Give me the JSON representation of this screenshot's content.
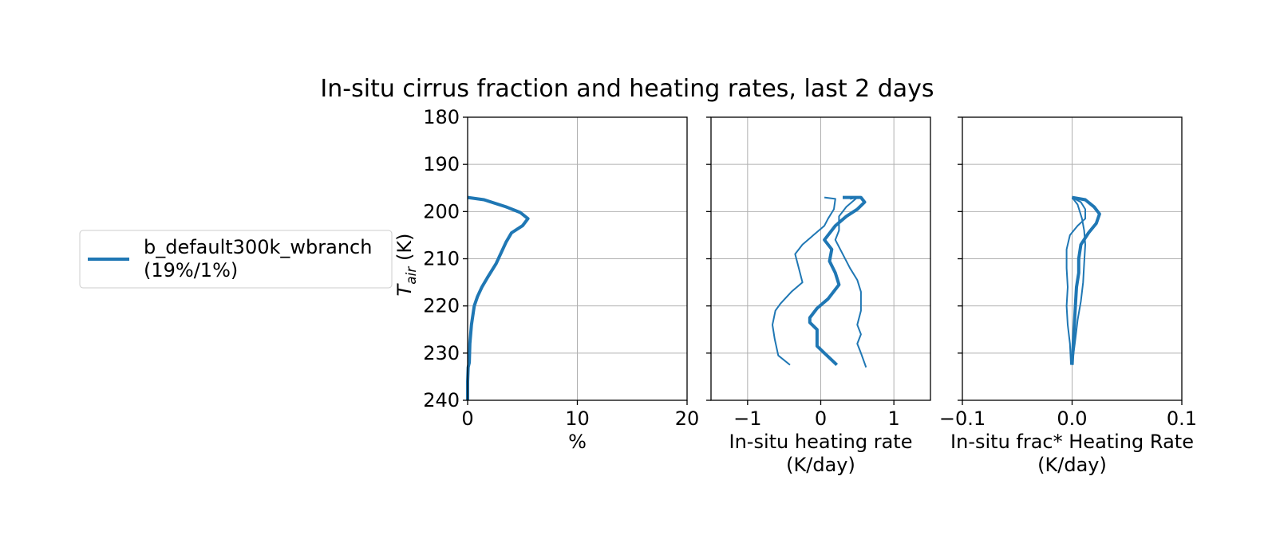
{
  "figure": {
    "suptitle": "In-situ cirrus fraction and heating rates, last 2 days",
    "legend": {
      "line1": "b_default300k_wbranch",
      "line2": "(19%/1%)",
      "color": "#1f77b4",
      "placement": "left of figure, outside axes"
    }
  },
  "chart_data": [
    {
      "type": "line",
      "xlabel": "%",
      "ylabel": "T_air (K)",
      "ylabel_main": "T",
      "ylabel_sub": "air",
      "ylabel_rest": " (K)",
      "xlim": [
        0,
        20
      ],
      "ylim": [
        240,
        180
      ],
      "xticks": [
        "0",
        "10",
        "20"
      ],
      "yticks": [
        "180",
        "190",
        "200",
        "210",
        "220",
        "230",
        "240"
      ],
      "grid": true,
      "series": [
        {
          "style": "thick",
          "color": "#1f77b4",
          "points": [
            [
              0,
              197
            ],
            [
              1.5,
              197.5
            ],
            [
              3.5,
              199
            ],
            [
              4.8,
              200.2
            ],
            [
              5.5,
              201.5
            ],
            [
              5.0,
              203
            ],
            [
              4.0,
              204.5
            ],
            [
              3.5,
              206.5
            ],
            [
              2.6,
              211
            ],
            [
              1.8,
              214
            ],
            [
              1.3,
              216
            ],
            [
              0.9,
              218
            ],
            [
              0.6,
              220
            ],
            [
              0.35,
              224
            ],
            [
              0.2,
              228
            ],
            [
              0.15,
              232
            ],
            [
              0.05,
              233
            ],
            [
              0,
              236
            ],
            [
              0,
              240
            ]
          ]
        }
      ]
    },
    {
      "type": "line",
      "xlabel": "In-situ heating rate",
      "xlabel2": "(K/day)",
      "xlim": [
        -1.5,
        1.5
      ],
      "ylim": [
        240,
        180
      ],
      "xticks": [
        "−1",
        "0",
        "1"
      ],
      "yticks": [],
      "grid": true,
      "series": [
        {
          "style": "thick",
          "color": "#1f77b4",
          "points": [
            [
              0.3,
              197
            ],
            [
              0.55,
              197
            ],
            [
              0.6,
              198
            ],
            [
              0.5,
              199.5
            ],
            [
              0.35,
              201
            ],
            [
              0.2,
              203
            ],
            [
              0.05,
              206
            ],
            [
              0.15,
              208
            ],
            [
              0.12,
              210.5
            ],
            [
              0.2,
              213
            ],
            [
              0.25,
              215.5
            ],
            [
              0.1,
              218.5
            ],
            [
              -0.05,
              220.5
            ],
            [
              -0.15,
              222.5
            ],
            [
              -0.15,
              223.5
            ],
            [
              -0.05,
              225
            ],
            [
              -0.05,
              227
            ],
            [
              -0.05,
              228.5
            ],
            [
              0.05,
              230
            ],
            [
              0.22,
              232.5
            ]
          ]
        },
        {
          "style": "thin",
          "color": "#1f77b4",
          "points": [
            [
              0.05,
              197
            ],
            [
              0.2,
              197.3
            ],
            [
              0.18,
              199.5
            ],
            [
              0.1,
              201.5
            ],
            [
              0.05,
              203
            ],
            [
              -0.1,
              205
            ],
            [
              -0.25,
              207
            ],
            [
              -0.35,
              209
            ],
            [
              -0.3,
              212
            ],
            [
              -0.25,
              215
            ],
            [
              -0.4,
              217
            ],
            [
              -0.55,
              219.5
            ],
            [
              -0.62,
              221
            ],
            [
              -0.66,
              224
            ],
            [
              -0.63,
              227
            ],
            [
              -0.58,
              230.5
            ],
            [
              -0.42,
              232.5
            ]
          ]
        },
        {
          "style": "thin",
          "color": "#1f77b4",
          "points": [
            [
              0.4,
              197.3
            ],
            [
              0.5,
              197
            ],
            [
              0.35,
              199
            ],
            [
              0.25,
              201
            ],
            [
              0.25,
              204
            ],
            [
              0.2,
              206
            ],
            [
              0.3,
              209
            ],
            [
              0.4,
              212
            ],
            [
              0.5,
              214.5
            ],
            [
              0.55,
              217
            ],
            [
              0.55,
              221
            ],
            [
              0.5,
              224
            ],
            [
              0.55,
              226
            ],
            [
              0.5,
              228
            ],
            [
              0.55,
              230
            ],
            [
              0.62,
              233
            ]
          ]
        }
      ]
    },
    {
      "type": "line",
      "xlabel": "In-situ frac* Heating Rate",
      "xlabel2": "(K/day)",
      "xlim": [
        -0.1,
        0.1
      ],
      "ylim": [
        240,
        180
      ],
      "xticks": [
        "−0.1",
        "0.0",
        "0.1"
      ],
      "yticks": [],
      "grid": true,
      "series": [
        {
          "style": "thick",
          "color": "#1f77b4",
          "points": [
            [
              0,
              197
            ],
            [
              0.012,
              197.5
            ],
            [
              0.02,
              199
            ],
            [
              0.025,
              200.5
            ],
            [
              0.022,
              202.5
            ],
            [
              0.015,
              204.5
            ],
            [
              0.008,
              207
            ],
            [
              0.006,
              210
            ],
            [
              0.006,
              213
            ],
            [
              0.004,
              216
            ],
            [
              0.003,
              220
            ],
            [
              0.002,
              224
            ],
            [
              0.001,
              228
            ],
            [
              0.0,
              232.5
            ]
          ]
        },
        {
          "style": "thin",
          "color": "#1f77b4",
          "points": [
            [
              0,
              197
            ],
            [
              0.008,
              198
            ],
            [
              0.012,
              199.5
            ],
            [
              0.012,
              201.5
            ],
            [
              0.005,
              203
            ],
            [
              -0.002,
              205
            ],
            [
              -0.005,
              208
            ],
            [
              -0.005,
              212
            ],
            [
              -0.004,
              216
            ],
            [
              -0.005,
              220
            ],
            [
              -0.004,
              224
            ],
            [
              -0.002,
              228
            ],
            [
              -0.001,
              232.5
            ]
          ]
        },
        {
          "style": "thin",
          "color": "#1f77b4",
          "points": [
            [
              0,
              197
            ],
            [
              0.005,
              198.5
            ],
            [
              0.009,
              201.5
            ],
            [
              0.011,
              204
            ],
            [
              0.012,
              207
            ],
            [
              0.011,
              211
            ],
            [
              0.01,
              215
            ],
            [
              0.008,
              219
            ],
            [
              0.005,
              223
            ],
            [
              0.003,
              227
            ],
            [
              0.0,
              232.5
            ]
          ]
        }
      ]
    }
  ]
}
